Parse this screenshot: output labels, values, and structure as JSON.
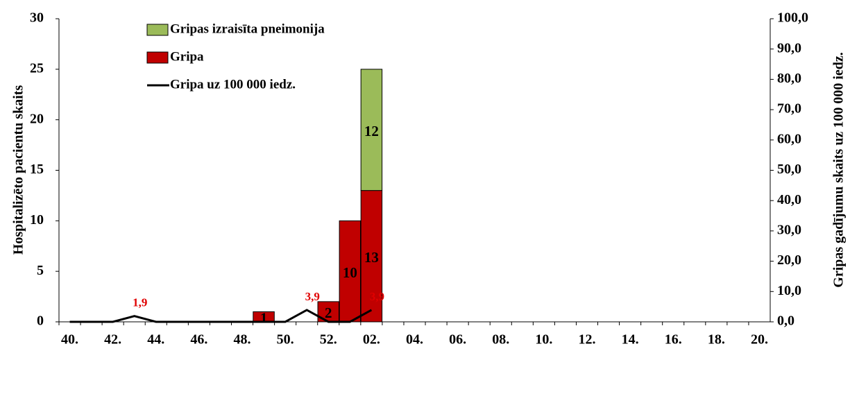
{
  "chart_data": {
    "type": "bar",
    "categories": [
      "40.",
      null,
      "42.",
      null,
      "44.",
      null,
      "46.",
      null,
      "48.",
      null,
      "50.",
      null,
      "52.",
      null,
      "02.",
      null,
      "04.",
      null,
      "06.",
      null,
      "08.",
      null,
      "10.",
      null,
      "12.",
      null,
      "14.",
      null,
      "16.",
      null,
      "18.",
      null,
      "20."
    ],
    "series": [
      {
        "name": "Gripas izraisīta pneimonija",
        "type": "bar",
        "color": "#9bbb59",
        "values": [
          0,
          0,
          0,
          0,
          0,
          0,
          0,
          0,
          0,
          0,
          0,
          0,
          0,
          0,
          12,
          null,
          null,
          null,
          null,
          null,
          null,
          null,
          null,
          null,
          null,
          null,
          null,
          null,
          null,
          null,
          null,
          null,
          null
        ]
      },
      {
        "name": "Gripa",
        "type": "bar",
        "color": "#c00000",
        "values": [
          0,
          0,
          0,
          0,
          0,
          0,
          0,
          0,
          0,
          1,
          0,
          0,
          2,
          10,
          13,
          null,
          null,
          null,
          null,
          null,
          null,
          null,
          null,
          null,
          null,
          null,
          null,
          null,
          null,
          null,
          null,
          null,
          null
        ]
      },
      {
        "name": "Gripa uz 100 000 iedz.",
        "type": "line",
        "axis": "y2",
        "color": "#000000",
        "values": [
          0,
          0,
          0,
          1.9,
          0,
          0,
          0,
          0,
          0,
          0,
          0,
          3.9,
          0,
          0,
          3.9,
          null,
          null,
          null,
          null,
          null,
          null,
          null,
          null,
          null,
          null,
          null,
          null,
          null,
          null,
          null,
          null,
          null,
          null
        ],
        "value_labels": [
          null,
          null,
          null,
          "1,9",
          null,
          null,
          null,
          null,
          null,
          null,
          null,
          "3,9",
          null,
          null,
          "3,9",
          null,
          null,
          null,
          null,
          null,
          null,
          null,
          null,
          null,
          null,
          null,
          null,
          null,
          null,
          null,
          null,
          null,
          null
        ]
      }
    ],
    "ylabel": "Hospitalizēto pacientu skaits",
    "y2label": "Gripas gadījumu skaits uz 100 000 iedz.",
    "ylim": [
      0,
      30
    ],
    "yticks": [
      0,
      5,
      10,
      15,
      20,
      25,
      30
    ],
    "y2lim": [
      0,
      100
    ],
    "y2ticks": [
      {
        "value": 0,
        "label": "0,0"
      },
      {
        "value": 10,
        "label": "10,0"
      },
      {
        "value": 20,
        "label": "20,0"
      },
      {
        "value": 30,
        "label": "30,0"
      },
      {
        "value": 40,
        "label": "40,0"
      },
      {
        "value": 50,
        "label": "50,0"
      },
      {
        "value": 60,
        "label": "60,0"
      },
      {
        "value": 70,
        "label": "70,0"
      },
      {
        "value": 80,
        "label": "80,0"
      },
      {
        "value": 90,
        "label": "90,0"
      },
      {
        "value": 100,
        "label": "100,0"
      }
    ],
    "legend": "top-left"
  }
}
